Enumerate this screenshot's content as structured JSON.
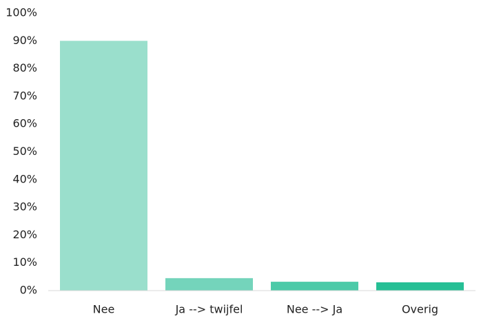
{
  "chart_data": {
    "type": "bar",
    "categories": [
      "Nee",
      "Ja --> twijfel",
      "Nee --> Ja",
      "Overig"
    ],
    "values": [
      90,
      4.5,
      3.2,
      3
    ],
    "colors": [
      "#9adfcc",
      "#74d4bb",
      "#4ccaa8",
      "#26bf95"
    ],
    "ylim": [
      0,
      100
    ],
    "yticks": [
      {
        "value": 0,
        "label": "0%"
      },
      {
        "value": 10,
        "label": "10%"
      },
      {
        "value": 20,
        "label": "20%"
      },
      {
        "value": 30,
        "label": "30%"
      },
      {
        "value": 40,
        "label": "40%"
      },
      {
        "value": 50,
        "label": "50%"
      },
      {
        "value": 60,
        "label": "60%"
      },
      {
        "value": 70,
        "label": "70%"
      },
      {
        "value": 80,
        "label": "80%"
      },
      {
        "value": 90,
        "label": "90%"
      },
      {
        "value": 100,
        "label": "100%"
      }
    ],
    "grid": false
  }
}
